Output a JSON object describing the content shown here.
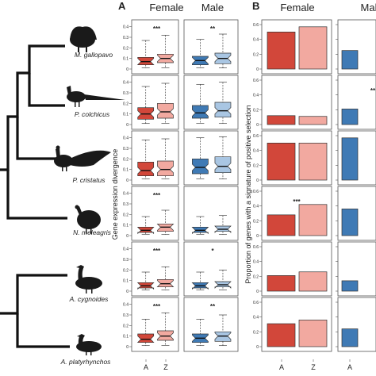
{
  "panel_labels": {
    "a": "A",
    "b": "B"
  },
  "header": {
    "female": "Female",
    "male": "Male",
    "female_b": "Female",
    "male_b": "Mal"
  },
  "ylabel_a": "Gene expression divergence",
  "ylabel_b": "Proportion of genes with a signature of positive selection",
  "species": [
    "M. gallopavo",
    "P. colchicus",
    "P. cristatus",
    "N. meleagris",
    "A. cygnoides",
    "A. platyrhynchos"
  ],
  "box_ticks": [
    "0",
    "0.1",
    "0.2",
    "0.3",
    "0.4"
  ],
  "bar_ticks": [
    "0",
    "0.2",
    "0.4",
    "0.6"
  ],
  "xcats": [
    "A",
    "Z"
  ],
  "colors": {
    "female_A": "#d2473a",
    "female_Z": "#f2a9a0",
    "male_A": "#3f7ab5",
    "male_Z": "#a9c6e3"
  },
  "chart_data": [
    {
      "type": "box",
      "title": "",
      "ylabel": "Gene expression divergence",
      "ylim": [
        0,
        0.42
      ],
      "categories": [
        "A",
        "Z"
      ],
      "rows": [
        {
          "species": "M. gallopavo",
          "female": {
            "A": [
              0.01,
              0.04,
              0.07,
              0.11,
              0.27
            ],
            "Z": [
              0.01,
              0.06,
              0.1,
              0.14,
              0.32
            ],
            "sig": "***"
          },
          "male": {
            "A": [
              0.01,
              0.04,
              0.08,
              0.12,
              0.28
            ],
            "Z": [
              0.01,
              0.05,
              0.1,
              0.15,
              0.33
            ],
            "sig": "**"
          }
        },
        {
          "species": "P. colchicus",
          "female": {
            "A": [
              0.01,
              0.05,
              0.1,
              0.16,
              0.36
            ],
            "Z": [
              0.01,
              0.06,
              0.12,
              0.2,
              0.39
            ],
            "sig": ""
          },
          "male": {
            "A": [
              0.01,
              0.06,
              0.11,
              0.18,
              0.38
            ],
            "Z": [
              0.01,
              0.07,
              0.13,
              0.21,
              0.4
            ],
            "sig": ""
          }
        },
        {
          "species": "P. cristatus",
          "female": {
            "A": [
              0.01,
              0.04,
              0.09,
              0.17,
              0.38
            ],
            "Z": [
              0.01,
              0.04,
              0.1,
              0.18,
              0.39
            ],
            "sig": ""
          },
          "male": {
            "A": [
              0.01,
              0.06,
              0.12,
              0.2,
              0.4
            ],
            "Z": [
              0.01,
              0.07,
              0.13,
              0.22,
              0.41
            ],
            "sig": ""
          }
        },
        {
          "species": "N. meleagris",
          "female": {
            "A": [
              0.01,
              0.03,
              0.05,
              0.08,
              0.18
            ],
            "Z": [
              0.01,
              0.04,
              0.08,
              0.11,
              0.24
            ],
            "sig": "***"
          },
          "male": {
            "A": [
              0.01,
              0.03,
              0.05,
              0.08,
              0.18
            ],
            "Z": [
              0.01,
              0.04,
              0.06,
              0.09,
              0.19
            ],
            "sig": ""
          }
        },
        {
          "species": "A. cygnoides",
          "female": {
            "A": [
              0.01,
              0.03,
              0.05,
              0.08,
              0.18
            ],
            "Z": [
              0.01,
              0.04,
              0.07,
              0.11,
              0.23
            ],
            "sig": "***"
          },
          "male": {
            "A": [
              0.01,
              0.03,
              0.05,
              0.08,
              0.18
            ],
            "Z": [
              0.01,
              0.04,
              0.06,
              0.09,
              0.2
            ],
            "sig": "*"
          }
        },
        {
          "species": "A. platyrhynchos",
          "female": {
            "A": [
              0.01,
              0.04,
              0.07,
              0.12,
              0.26
            ],
            "Z": [
              0.01,
              0.06,
              0.1,
              0.15,
              0.32
            ],
            "sig": "***"
          },
          "male": {
            "A": [
              0.01,
              0.04,
              0.08,
              0.12,
              0.26
            ],
            "Z": [
              0.01,
              0.05,
              0.1,
              0.14,
              0.3
            ],
            "sig": "**"
          }
        }
      ]
    },
    {
      "type": "bar",
      "title": "",
      "ylabel": "Proportion of genes with a signature of positive selection",
      "ylim": [
        0,
        0.6
      ],
      "categories": [
        "A",
        "Z"
      ],
      "rows": [
        {
          "species": "M. gallopavo",
          "female": {
            "A": 0.5,
            "Z": 0.57,
            "sig": ""
          },
          "male": {
            "A": 0.25,
            "sig": ""
          }
        },
        {
          "species": "P. colchicus",
          "female": {
            "A": 0.12,
            "Z": 0.11,
            "sig": ""
          },
          "male": {
            "A": 0.21,
            "sig": "**"
          }
        },
        {
          "species": "P. cristatus",
          "female": {
            "A": 0.5,
            "Z": 0.5,
            "sig": ""
          },
          "male": {
            "A": 0.57,
            "sig": ""
          }
        },
        {
          "species": "N. meleagris",
          "female": {
            "A": 0.28,
            "Z": 0.42,
            "sig": "***"
          },
          "male": {
            "A": 0.36,
            "sig": ""
          }
        },
        {
          "species": "A. cygnoides",
          "female": {
            "A": 0.21,
            "Z": 0.26,
            "sig": ""
          },
          "male": {
            "A": 0.14,
            "sig": ""
          }
        },
        {
          "species": "A. platyrhynchos",
          "female": {
            "A": 0.31,
            "Z": 0.36,
            "sig": ""
          },
          "male": {
            "A": 0.24,
            "sig": ""
          }
        }
      ]
    }
  ]
}
